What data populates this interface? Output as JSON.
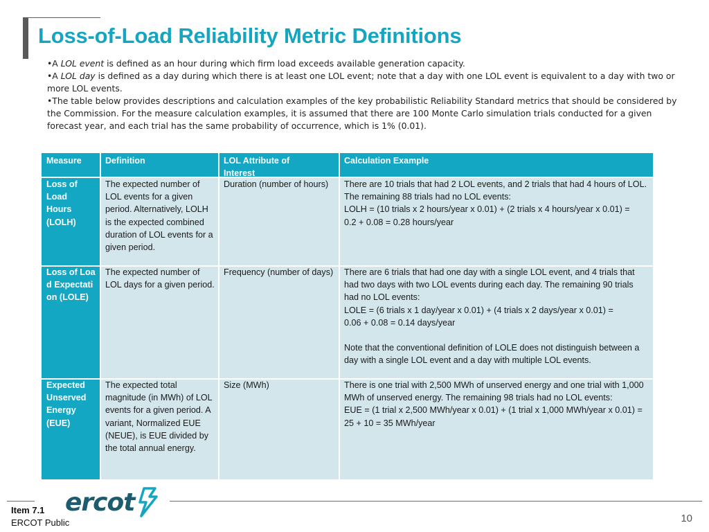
{
  "title": "Loss-of-Load Reliability Metric Definitions",
  "bullets": [
    {
      "pre": "•A ",
      "em": "LOL event",
      "post": " is defined as an hour during which firm load exceeds available generation capacity."
    },
    {
      "pre": "•A ",
      "em": "LOL day",
      "post": " is defined as a day during which there is at least one LOL event; note that a day with one LOL event is equivalent to a day with two or more LOL events."
    },
    {
      "pre": "•The table below provides descriptions and calculation examples of the key probabilistic Reliability Standard metrics that should be considered by the Commission. For the measure calculation examples, it is assumed that there are 100 Monte Carlo simulation trials conducted for a given forecast year, and each trial has the same probability of occurrence, which is 1% (0.01).",
      "em": "",
      "post": ""
    }
  ],
  "table": {
    "headers": [
      "Measure",
      "Definition",
      "LOL Attribute of Interest",
      "Calculation Example"
    ],
    "rows": [
      {
        "measure": "Loss of Load Hours (LOLH)",
        "definition": "The expected number of LOL events for a given period. Alternatively, LOLH is the expected combined duration of LOL events for a given period.",
        "attribute": "Duration (number of hours)",
        "example": "There are 10 trials that had 2 LOL events, and 2 trials that had 4 hours of LOL. The remaining 88 trials had no LOL events:\nLOLH = (10 trials x 2 hours/year x 0.01) + (2 trials x 4 hours/year x 0.01) =\n0.2 + 0.08 = 0.28 hours/year"
      },
      {
        "measure": "Loss of Load Expectation (LOLE)",
        "definition": "The expected number of LOL days for a given period.",
        "attribute": "Frequency (number of days)",
        "example": "There are 6 trials that had one day with a single LOL event, and 4 trials that had two days with two LOL events during each day. The remaining 90 trials had no LOL events:\nLOLE = (6 trials x 1 day/year x 0.01) + (4 trials x 2 days/year x 0.01) =\n0.06 + 0.08 = 0.14 days/year\n\nNote that the conventional definition of LOLE does not distinguish between a day with a single LOL event and a day with multiple LOL events."
      },
      {
        "measure": "Expected Unserved Energy (EUE)",
        "definition": "The expected total magnitude (in MWh) of LOL events for a given period. A variant, Normalized EUE (NEUE), is EUE divided by the total annual energy.",
        "attribute": "Size (MWh)",
        "example": "There is one trial with 2,500 MWh of unserved energy and one trial with 1,000 MWh of unserved energy. The remaining 98 trials had no LOL events:\nEUE = (1 trial x 2,500 MWh/year x 0.01) + (1 trial x 1,000 MWh/year x 0.01) = 25 + 10 = 35 MWh/year"
      }
    ]
  },
  "footer": {
    "item": "Item 7.1",
    "classification": "ERCOT Public",
    "logo_text": "ercot",
    "page_number": "10"
  },
  "colors": {
    "title": "#16a5c0",
    "header_bg": "#13a7c4",
    "row_bg": "#d3e6ec"
  }
}
